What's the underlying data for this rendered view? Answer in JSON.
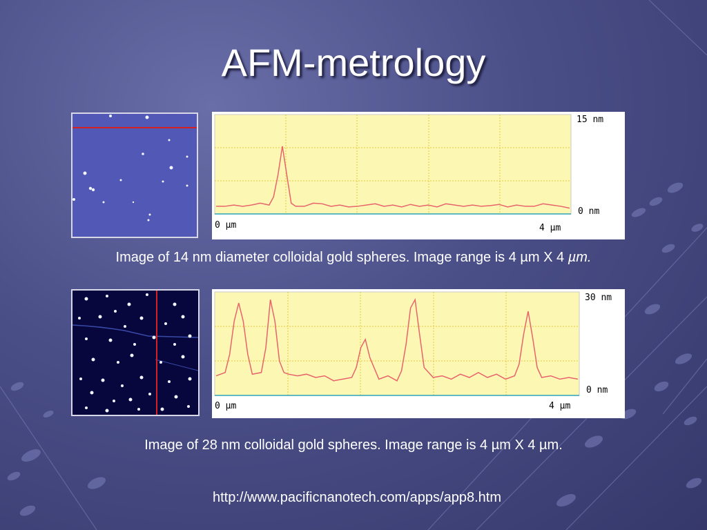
{
  "slide": {
    "title": "AFM-metrology",
    "colors": {
      "background": "#4b4f88",
      "plot_bg": "#fdf7b4",
      "grid": "#e2c83c",
      "trace": "#e8636b",
      "scan_line": "#d42020",
      "image1_bg": "#5158b6",
      "image2_bg": "#07073e"
    }
  },
  "figure1": {
    "image_icon": "afm-scan-image",
    "caption_text": "Image of 14 nm diameter colloidal gold spheres.  Image range is 4 µm X 4 ",
    "caption_unit_italic": "µm.",
    "chart_data": {
      "type": "line",
      "x_start_label": "0 µm",
      "x_end_label": "4 µm",
      "y_top_label": "15 nm",
      "y_bottom_label": "0 nm",
      "xlim": [
        0,
        4
      ],
      "ylim": [
        0,
        15
      ],
      "grid": true,
      "x": [
        0,
        0.1,
        0.2,
        0.3,
        0.4,
        0.5,
        0.6,
        0.65,
        0.7,
        0.75,
        0.8,
        0.85,
        0.9,
        1.0,
        1.1,
        1.2,
        1.3,
        1.4,
        1.5,
        1.6,
        1.7,
        1.8,
        1.9,
        2.0,
        2.1,
        2.2,
        2.3,
        2.4,
        2.5,
        2.6,
        2.7,
        2.8,
        2.9,
        3.0,
        3.1,
        3.2,
        3.3,
        3.4,
        3.5,
        3.6,
        3.7,
        3.8,
        3.9,
        4.0
      ],
      "y": [
        1.0,
        1.0,
        1.2,
        1.0,
        1.2,
        1.5,
        1.2,
        2.5,
        6.0,
        10.6,
        6.0,
        1.5,
        1.0,
        1.0,
        1.5,
        1.4,
        1.0,
        1.2,
        0.9,
        1.0,
        1.2,
        1.4,
        1.0,
        1.2,
        0.9,
        1.3,
        1.0,
        1.2,
        0.9,
        1.4,
        1.2,
        1.0,
        1.2,
        1.0,
        1.1,
        1.3,
        0.9,
        1.2,
        1.0,
        1.0,
        1.4,
        1.2,
        1.0,
        0.7
      ]
    }
  },
  "figure2": {
    "image_icon": "afm-scan-image",
    "caption_text": "Image of 28 nm colloidal gold spheres.  Image range is 4 µm X 4 µm.",
    "chart_data": {
      "type": "line",
      "x_start_label": "0 µm",
      "x_end_label": "4 µm",
      "y_top_label": "30 nm",
      "y_bottom_label": "0 nm",
      "xlim": [
        0,
        4
      ],
      "ylim": [
        0,
        30
      ],
      "grid": true,
      "x": [
        0,
        0.1,
        0.15,
        0.2,
        0.25,
        0.3,
        0.35,
        0.4,
        0.5,
        0.55,
        0.6,
        0.65,
        0.7,
        0.75,
        0.8,
        0.9,
        1.0,
        1.1,
        1.2,
        1.3,
        1.4,
        1.5,
        1.55,
        1.6,
        1.65,
        1.7,
        1.8,
        1.9,
        2.0,
        2.05,
        2.1,
        2.15,
        2.2,
        2.25,
        2.3,
        2.4,
        2.5,
        2.6,
        2.7,
        2.8,
        2.9,
        3.0,
        3.1,
        3.2,
        3.3,
        3.35,
        3.4,
        3.45,
        3.5,
        3.55,
        3.6,
        3.7,
        3.8,
        3.9,
        4.0
      ],
      "y": [
        5.5,
        6.5,
        12,
        22,
        27.5,
        22,
        12,
        6,
        6.5,
        14,
        28.5,
        22,
        10,
        6.5,
        6,
        5.5,
        6,
        5,
        5.5,
        4,
        4.5,
        5,
        8,
        14,
        16.5,
        11,
        4.5,
        5.5,
        4,
        7,
        15,
        26,
        28.5,
        18,
        8,
        5,
        5.5,
        4.5,
        6,
        5,
        6.5,
        5,
        6,
        4.5,
        5.5,
        9,
        18,
        25,
        17,
        8,
        5,
        5.5,
        4.5,
        5,
        4.5
      ]
    }
  },
  "footer": {
    "url": "http://www.pacificnanotech.com/apps/app8.htm"
  }
}
